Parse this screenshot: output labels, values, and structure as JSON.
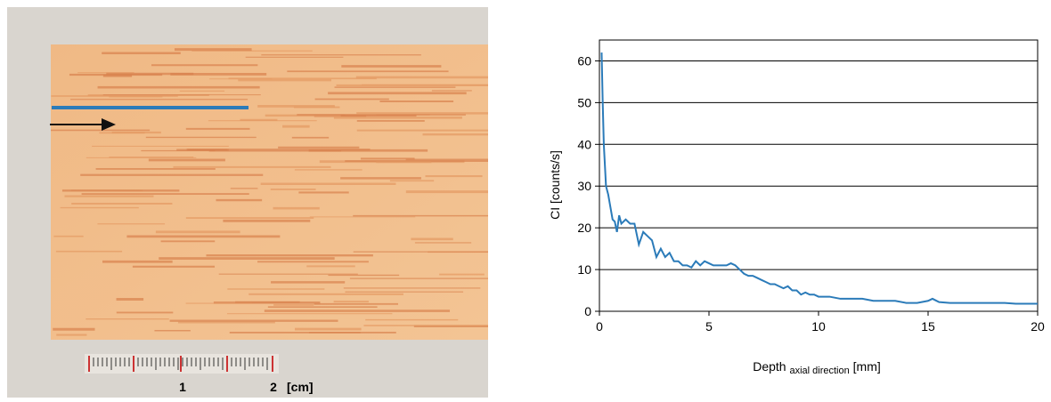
{
  "photo": {
    "scale_labels": [
      "1",
      "2",
      "[cm]"
    ]
  },
  "chart_data": {
    "type": "line",
    "ylabel": "CI [counts/s]",
    "xlabel": "Depth",
    "xlabel_sub": "axial direction",
    "xlabel_unit": "[mm]",
    "x": [
      0.1,
      0.15,
      0.2,
      0.3,
      0.4,
      0.5,
      0.6,
      0.7,
      0.8,
      0.9,
      1.0,
      1.2,
      1.4,
      1.6,
      1.8,
      2.0,
      2.2,
      2.4,
      2.6,
      2.8,
      3.0,
      3.2,
      3.4,
      3.6,
      3.8,
      4.0,
      4.2,
      4.4,
      4.6,
      4.8,
      5.0,
      5.2,
      5.4,
      5.6,
      5.8,
      6.0,
      6.2,
      6.4,
      6.6,
      6.8,
      7.0,
      7.2,
      7.4,
      7.6,
      7.8,
      8.0,
      8.2,
      8.4,
      8.6,
      8.8,
      9.0,
      9.2,
      9.4,
      9.6,
      9.8,
      10,
      10.5,
      11,
      11.5,
      12,
      12.5,
      13,
      13.5,
      14,
      14.5,
      15,
      15.2,
      15.5,
      16,
      16.5,
      17,
      17.5,
      18,
      18.5,
      19,
      19.5,
      20
    ],
    "series": [
      {
        "color": "#2b7bb9",
        "values": [
          62,
          50,
          40,
          30,
          28,
          25,
          22,
          21.5,
          19,
          23,
          21,
          22,
          21,
          21,
          16,
          19,
          18,
          17,
          13,
          15,
          13,
          14,
          12,
          12,
          11,
          11,
          10.5,
          12,
          11,
          12,
          11.5,
          11,
          11,
          11,
          11,
          11.5,
          11,
          10,
          9,
          8.5,
          8.5,
          8,
          7.5,
          7,
          6.5,
          6.5,
          6,
          5.5,
          6,
          5,
          5,
          4,
          4.5,
          4,
          4,
          3.5,
          3.5,
          3,
          3,
          3,
          2.5,
          2.5,
          2.5,
          2,
          2,
          2.5,
          3,
          2.2,
          2,
          2,
          2,
          2,
          2,
          2,
          1.8,
          1.8,
          1.8
        ]
      }
    ],
    "xlim": [
      0,
      20
    ],
    "xticks": [
      0,
      5,
      10,
      15,
      20
    ],
    "ylim": [
      0,
      65
    ],
    "yticks": [
      0,
      10,
      20,
      30,
      40,
      50,
      60
    ],
    "grid": true
  }
}
